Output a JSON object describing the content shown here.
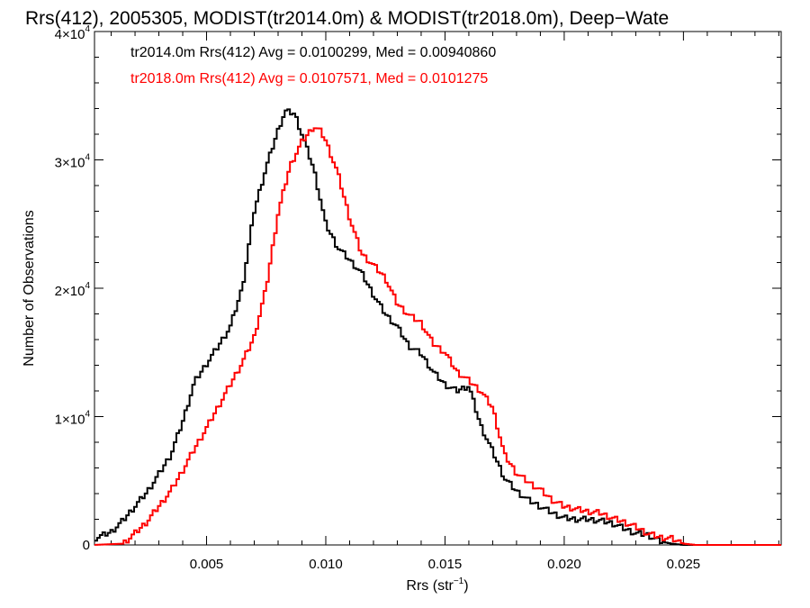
{
  "chart_data": {
    "type": "histogram-step",
    "title": "Rrs(412), 2005305, MODIST(tr2014.0m) & MODIST(tr2018.0m), Deep−Wate",
    "xlabel": "Rrs (str",
    "xlabel_sup": "−1",
    "xlabel_suffix": ")",
    "ylabel": "Number of Observations",
    "xlim": [
      0.0003,
      0.0291
    ],
    "ylim": [
      0,
      40000
    ],
    "grid": false,
    "x_ticks": [
      {
        "value": 0.005,
        "label": "0.005"
      },
      {
        "value": 0.01,
        "label": "0.010"
      },
      {
        "value": 0.015,
        "label": "0.015"
      },
      {
        "value": 0.02,
        "label": "0.020"
      },
      {
        "value": 0.025,
        "label": "0.025"
      }
    ],
    "y_ticks": [
      {
        "value": 0,
        "base": "0",
        "exp": ""
      },
      {
        "value": 10000,
        "base": "1×10",
        "exp": "4"
      },
      {
        "value": 20000,
        "base": "2×10",
        "exp": "4"
      },
      {
        "value": 30000,
        "base": "3×10",
        "exp": "4"
      },
      {
        "value": 40000,
        "base": "4×10",
        "exp": "4"
      }
    ],
    "legend_placement": "top-left",
    "series": [
      {
        "name": "tr2014.0m",
        "legend": "tr2014.0m Rrs(412) Avg = 0.0100299, Med = 0.00940860",
        "color": "#000000",
        "points": [
          [
            0.0003,
            500
          ],
          [
            0.001,
            1000
          ],
          [
            0.0015,
            1900
          ],
          [
            0.002,
            3000
          ],
          [
            0.0025,
            4100
          ],
          [
            0.003,
            5500
          ],
          [
            0.0035,
            7000
          ],
          [
            0.004,
            9600
          ],
          [
            0.0045,
            12700
          ],
          [
            0.005,
            14100
          ],
          [
            0.0055,
            15500
          ],
          [
            0.006,
            17000
          ],
          [
            0.0065,
            20000
          ],
          [
            0.007,
            26000
          ],
          [
            0.0075,
            29400
          ],
          [
            0.008,
            32300
          ],
          [
            0.0083,
            33800
          ],
          [
            0.0087,
            33600
          ],
          [
            0.009,
            32000
          ],
          [
            0.0095,
            29300
          ],
          [
            0.01,
            25000
          ],
          [
            0.0105,
            23200
          ],
          [
            0.011,
            22200
          ],
          [
            0.0115,
            21200
          ],
          [
            0.012,
            19500
          ],
          [
            0.0125,
            18000
          ],
          [
            0.013,
            17000
          ],
          [
            0.0135,
            15500
          ],
          [
            0.014,
            14900
          ],
          [
            0.0145,
            13500
          ],
          [
            0.015,
            12500
          ],
          [
            0.0155,
            12000
          ],
          [
            0.016,
            12400
          ],
          [
            0.0165,
            9300
          ],
          [
            0.017,
            7300
          ],
          [
            0.0175,
            5200
          ],
          [
            0.018,
            4200
          ],
          [
            0.0185,
            3500
          ],
          [
            0.019,
            3000
          ],
          [
            0.0195,
            2500
          ],
          [
            0.02,
            2100
          ],
          [
            0.0205,
            2000
          ],
          [
            0.021,
            2000
          ],
          [
            0.0215,
            1900
          ],
          [
            0.022,
            1700
          ],
          [
            0.0225,
            1300
          ],
          [
            0.023,
            900
          ],
          [
            0.0235,
            800
          ],
          [
            0.024,
            300
          ],
          [
            0.0245,
            100
          ],
          [
            0.025,
            0
          ],
          [
            0.0291,
            0
          ]
        ]
      },
      {
        "name": "tr2018.0m",
        "legend": "tr2018.0m Rrs(412) Avg = 0.0107571, Med = 0.0101275",
        "color": "#ff0000",
        "points": [
          [
            0.0003,
            0
          ],
          [
            0.0015,
            100
          ],
          [
            0.002,
            900
          ],
          [
            0.0025,
            1800
          ],
          [
            0.003,
            3000
          ],
          [
            0.0035,
            4200
          ],
          [
            0.004,
            5800
          ],
          [
            0.0045,
            7500
          ],
          [
            0.005,
            9100
          ],
          [
            0.0055,
            10800
          ],
          [
            0.006,
            12500
          ],
          [
            0.0065,
            14200
          ],
          [
            0.007,
            16200
          ],
          [
            0.0075,
            20000
          ],
          [
            0.008,
            25800
          ],
          [
            0.0085,
            29500
          ],
          [
            0.009,
            31400
          ],
          [
            0.0095,
            32600
          ],
          [
            0.0098,
            32200
          ],
          [
            0.01,
            31500
          ],
          [
            0.0105,
            29000
          ],
          [
            0.011,
            25500
          ],
          [
            0.0115,
            22700
          ],
          [
            0.012,
            21800
          ],
          [
            0.0125,
            20800
          ],
          [
            0.013,
            18800
          ],
          [
            0.0135,
            17900
          ],
          [
            0.014,
            17300
          ],
          [
            0.0145,
            15700
          ],
          [
            0.015,
            15000
          ],
          [
            0.0155,
            13500
          ],
          [
            0.016,
            12800
          ],
          [
            0.0165,
            12000
          ],
          [
            0.017,
            10700
          ],
          [
            0.0175,
            7000
          ],
          [
            0.018,
            5600
          ],
          [
            0.0185,
            4900
          ],
          [
            0.019,
            4300
          ],
          [
            0.0195,
            3500
          ],
          [
            0.02,
            3000
          ],
          [
            0.0205,
            2800
          ],
          [
            0.021,
            2600
          ],
          [
            0.0215,
            2500
          ],
          [
            0.022,
            2100
          ],
          [
            0.0225,
            1800
          ],
          [
            0.023,
            1400
          ],
          [
            0.0235,
            900
          ],
          [
            0.024,
            600
          ],
          [
            0.0245,
            500
          ],
          [
            0.025,
            100
          ],
          [
            0.0255,
            0
          ],
          [
            0.0291,
            0
          ]
        ]
      }
    ]
  }
}
